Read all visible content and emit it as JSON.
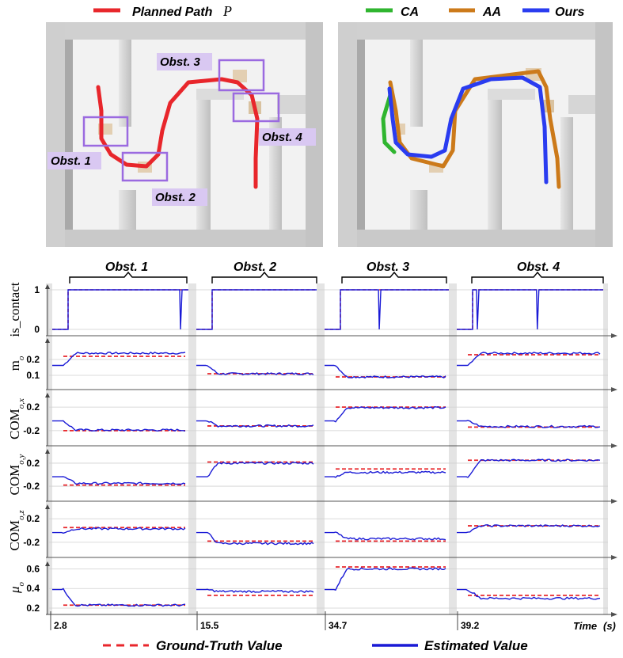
{
  "top_left": {
    "legend_label": "Planned Path",
    "legend_symbol": "P",
    "obstacle_labels": [
      "Obst. 1",
      "Obst. 2",
      "Obst. 3",
      "Obst. 4"
    ]
  },
  "top_right": {
    "legend": [
      {
        "label": "CA",
        "color": "#2fb52f"
      },
      {
        "label": "AA",
        "color": "#cc7a1a"
      },
      {
        "label": "Ours",
        "color": "#2a3cf0"
      }
    ]
  },
  "colors": {
    "planned_path": "#e8262b",
    "ground_truth": "#e8262b",
    "estimated": "#1a1ad6",
    "highlight_box": "#9b6ae0",
    "label_bg": "#d9c8f2",
    "wall": "#d4d4d4"
  },
  "chart_data": {
    "type": "line",
    "segment_headers": [
      "Obst. 1",
      "Obst. 2",
      "Obst. 3",
      "Obst. 4"
    ],
    "segment_start_times": [
      "2.8",
      "15.5",
      "34.7",
      "39.2"
    ],
    "time_axis_label": "Time",
    "time_unit": "(s)",
    "legend": [
      {
        "label": "Ground-Truth Value",
        "style": "dashed",
        "color": "#e8262b"
      },
      {
        "label": "Estimated Value",
        "style": "solid",
        "color": "#1a1ad6"
      }
    ],
    "rows": [
      {
        "name": "is_contact",
        "ylabel": "is_contact",
        "ticks": [
          "1",
          "0"
        ],
        "ylim": [
          0,
          1
        ],
        "ground_truth": [
          1,
          1,
          1,
          1
        ],
        "estimated_final": [
          1,
          1,
          1,
          1
        ]
      },
      {
        "name": "m_o",
        "ylabel": "m",
        "ylabel_sub": "o",
        "ticks": [
          "0.2",
          "0.1"
        ],
        "ylim": [
          0.05,
          0.3
        ],
        "ground_truth": [
          0.22,
          0.11,
          0.09,
          0.23
        ],
        "estimated_final": [
          0.24,
          0.11,
          0.09,
          0.24
        ]
      },
      {
        "name": "COM_o_x",
        "ylabel": "COM",
        "ylabel_sub": "o,x",
        "ticks": [
          "0.2",
          "-0.2"
        ],
        "ylim": [
          -0.35,
          0.35
        ],
        "ground_truth": [
          -0.2,
          -0.12,
          0.2,
          -0.14
        ],
        "estimated_final": [
          -0.19,
          -0.12,
          0.19,
          -0.13
        ]
      },
      {
        "name": "COM_o_y",
        "ylabel": "COM",
        "ylabel_sub": "o,y",
        "ticks": [
          "0.2",
          "-0.2"
        ],
        "ylim": [
          -0.35,
          0.35
        ],
        "ground_truth": [
          -0.18,
          0.22,
          0.1,
          0.25
        ],
        "estimated_final": [
          -0.15,
          0.2,
          0.04,
          0.25
        ]
      },
      {
        "name": "COM_o_z",
        "ylabel": "COM",
        "ylabel_sub": "o,z",
        "ticks": [
          "0.2",
          "-0.2"
        ],
        "ylim": [
          -0.35,
          0.35
        ],
        "ground_truth": [
          0.05,
          -0.18,
          -0.18,
          0.08
        ],
        "estimated_final": [
          0.03,
          -0.22,
          -0.14,
          0.08
        ]
      },
      {
        "name": "mu_o",
        "ylabel": "μ",
        "ylabel_sub": "o",
        "ticks": [
          "0.6",
          "0.4",
          "0.2"
        ],
        "ylim": [
          0.2,
          0.62
        ],
        "ground_truth": [
          0.23,
          0.33,
          0.62,
          0.33
        ],
        "estimated_final": [
          0.23,
          0.37,
          0.6,
          0.3
        ]
      }
    ]
  }
}
